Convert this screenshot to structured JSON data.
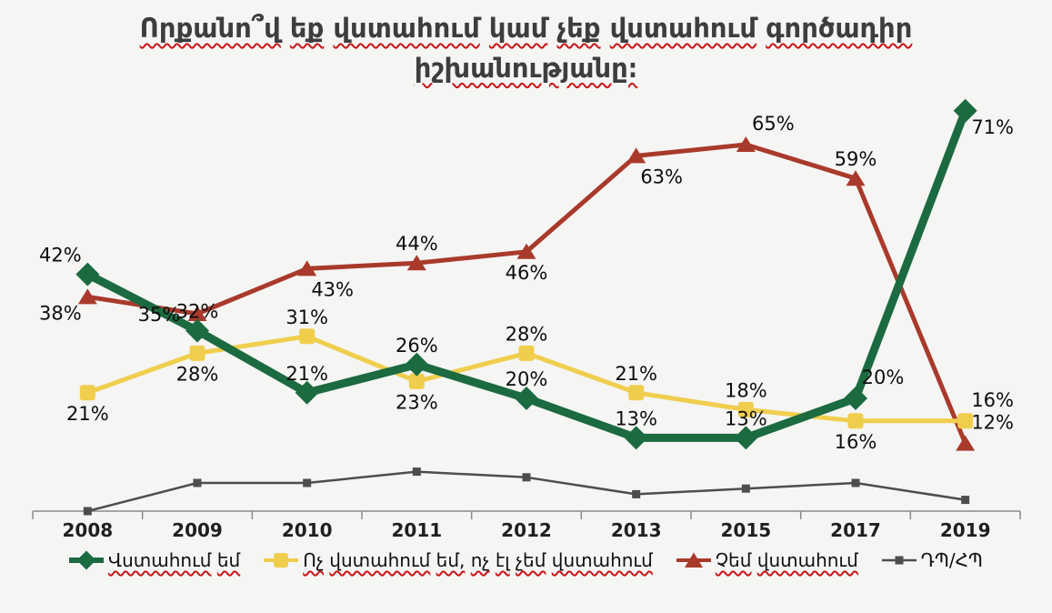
{
  "title": {
    "lines": [
      "Որքանո՞վ եք վստահում կամ չեք վստահում գործադիր",
      "իշխանությանը։"
    ]
  },
  "colors": {
    "background": "#f5f5f4",
    "title_text": "#3d3d3d",
    "squiggle": "#c81616",
    "axis": "#8a8a8a",
    "data_label_text": "#0d0d0d",
    "year_label_text": "#1f1f1f",
    "legend_text": "#111111",
    "trust_green": "#1b6a40",
    "neutral_yellow": "#f0ce4d",
    "distrust_red": "#a93a2b",
    "dkra_gray": "#4d4d4d"
  },
  "chart_data": {
    "type": "line",
    "title": "Որքանո՞վ եք վստահում կամ չեք վստահում գործադիր իշխանությանը։",
    "categories": [
      "2008",
      "2009",
      "2010",
      "2011",
      "2012",
      "2013",
      "2015",
      "2017",
      "2019"
    ],
    "ylim": [
      0,
      80
    ],
    "grid": false,
    "legend_position": "bottom",
    "label_suffix": "%",
    "series": [
      {
        "name": "Վստահում եմ",
        "color": "#1b6a40",
        "marker": "diamond",
        "line_width": 9,
        "values": [
          42,
          32,
          21,
          26,
          20,
          13,
          13,
          20,
          71
        ],
        "show_labels": true,
        "label_placements": [
          "above-left",
          "above",
          "above",
          "above",
          "above",
          "above",
          "above",
          "above-right",
          "right-below"
        ],
        "squiggle_underline": true
      },
      {
        "name": "Ոչ վստահում եմ, ոչ էլ չեմ վստահում",
        "color": "#f0ce4d",
        "marker": "square",
        "line_width": 5,
        "values": [
          21,
          28,
          31,
          23,
          28,
          21,
          18,
          16,
          16
        ],
        "show_labels": true,
        "label_placements": [
          "below",
          "below",
          "above",
          "below",
          "above",
          "above",
          "above",
          "below",
          "above-right"
        ],
        "squiggle_underline": true
      },
      {
        "name": "Չեմ վստահում",
        "color": "#a93a2b",
        "marker": "triangle",
        "line_width": 5,
        "values": [
          38,
          35,
          43,
          44,
          46,
          63,
          65,
          59,
          12
        ],
        "show_labels": true,
        "label_placements": [
          "left-below",
          "left",
          "below-right",
          "above",
          "below",
          "below-right",
          "above-right",
          "above",
          "above-right"
        ],
        "squiggle_underline": true
      },
      {
        "name": "ԴՊ/ՀՊ",
        "color": "#4d4d4d",
        "marker": "small-square",
        "line_width": 2.5,
        "values": [
          0,
          5,
          5,
          7,
          6,
          3,
          4,
          5,
          2
        ],
        "show_labels": false,
        "label_placements": [],
        "squiggle_underline": false
      }
    ]
  }
}
